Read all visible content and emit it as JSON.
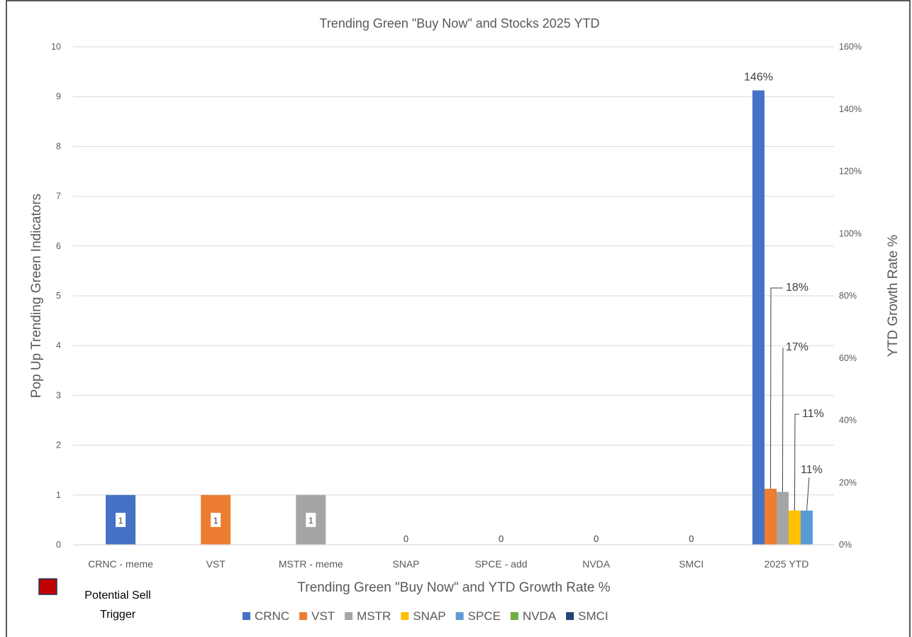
{
  "chart_data": {
    "type": "bar",
    "title": "Trending Green \"Buy Now\" and Stocks 2025 YTD",
    "xlabel": "Trending Green \"Buy Now\" and YTD Growth Rate %",
    "ylabel": "Pop Up Trending Green Indicators",
    "y2label": "YTD Growth Rate %",
    "ylim": [
      0,
      10
    ],
    "y2lim": [
      0,
      1.6
    ],
    "yticks": [
      "0",
      "1",
      "2",
      "3",
      "4",
      "5",
      "6",
      "7",
      "8",
      "9",
      "10"
    ],
    "y2ticks": [
      "0%",
      "20%",
      "40%",
      "60%",
      "80%",
      "100%",
      "120%",
      "140%",
      "160%"
    ],
    "grid": true,
    "legend_position": "bottom",
    "categories": [
      "CRNC - meme",
      "VST",
      "MSTR - meme",
      "SNAP",
      "SPCE - add",
      "NVDA",
      "SMCI",
      "2025 YTD"
    ],
    "indicators": [
      {
        "category": "CRNC - meme",
        "value": 1,
        "label": "1",
        "color": "#4472c4"
      },
      {
        "category": "VST",
        "value": 1,
        "label": "1",
        "color": "#ed7d31"
      },
      {
        "category": "MSTR - meme",
        "value": 1,
        "label": "1",
        "color": "#a5a5a5"
      },
      {
        "category": "SNAP",
        "value": 0,
        "label": "0"
      },
      {
        "category": "SPCE - add",
        "value": 0,
        "label": "0"
      },
      {
        "category": "NVDA",
        "value": 0,
        "label": "0"
      },
      {
        "category": "SMCI",
        "value": 0,
        "label": "0"
      }
    ],
    "ytd_growth": [
      {
        "name": "CRNC",
        "value": 1.46,
        "label": "146%",
        "color": "#4472c4"
      },
      {
        "name": "VST",
        "value": 0.18,
        "label": "18%",
        "color": "#ed7d31"
      },
      {
        "name": "MSTR",
        "value": 0.17,
        "label": "17%",
        "color": "#a5a5a5"
      },
      {
        "name": "SNAP",
        "value": 0.11,
        "label": "11%",
        "color": "#ffc000"
      },
      {
        "name": "SPCE",
        "value": 0.11,
        "label": "11%",
        "color": "#5b9bd5"
      }
    ],
    "series": [
      {
        "name": "CRNC",
        "color": "#4472c4"
      },
      {
        "name": "VST",
        "color": "#ed7d31"
      },
      {
        "name": "MSTR",
        "color": "#a5a5a5"
      },
      {
        "name": "SNAP",
        "color": "#ffc000"
      },
      {
        "name": "SPCE",
        "color": "#5b9bd5"
      },
      {
        "name": "NVDA",
        "color": "#70ad47"
      },
      {
        "name": "SMCI",
        "color": "#264478"
      }
    ],
    "note": {
      "lines": [
        "Potential Sell",
        "Trigger"
      ],
      "color": "#c00000"
    }
  }
}
